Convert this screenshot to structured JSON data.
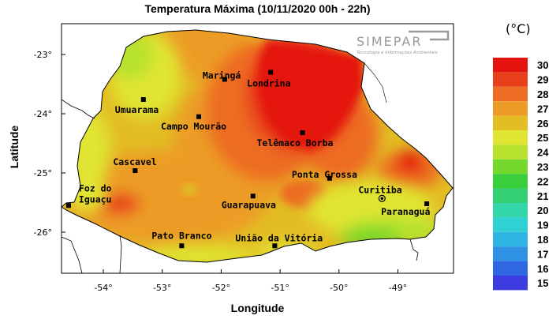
{
  "title": "Temperatura Máxima (10/11/2020 00h - 22h)",
  "unit_label": "(°C)",
  "axes": {
    "xlabel": "Longitude",
    "ylabel": "Latitude",
    "x_ticks": [
      {
        "value": -54,
        "label": "-54°"
      },
      {
        "value": -53,
        "label": "-53°"
      },
      {
        "value": -52,
        "label": "-52°"
      },
      {
        "value": -51,
        "label": "-51°"
      },
      {
        "value": -50,
        "label": "-50°"
      },
      {
        "value": -49,
        "label": "-49°"
      }
    ],
    "y_ticks": [
      {
        "value": -23,
        "label": "-23°"
      },
      {
        "value": -24,
        "label": "-24°"
      },
      {
        "value": -25,
        "label": "-25°"
      },
      {
        "value": -26,
        "label": "-26°"
      }
    ],
    "lon_range": [
      -54.7,
      -48.0
    ],
    "lat_range": [
      -22.5,
      -26.7
    ]
  },
  "logo": {
    "name": "SIMEPAR",
    "tagline": "Tecnologia e Informações Ambientais",
    "color": "#9a9a9a"
  },
  "legend": {
    "levels": [
      {
        "label": "30",
        "color": "#e4130f"
      },
      {
        "label": "29",
        "color": "#e8401c"
      },
      {
        "label": "28",
        "color": "#ed6d24"
      },
      {
        "label": "27",
        "color": "#ec9c26"
      },
      {
        "label": "26",
        "color": "#e2bd24"
      },
      {
        "label": "25",
        "color": "#e0e432"
      },
      {
        "label": "24",
        "color": "#b8e22d"
      },
      {
        "label": "23",
        "color": "#75d82c"
      },
      {
        "label": "22",
        "color": "#3acd3c"
      },
      {
        "label": "21",
        "color": "#33cf72"
      },
      {
        "label": "20",
        "color": "#33d6a8"
      },
      {
        "label": "19",
        "color": "#30d1d3"
      },
      {
        "label": "18",
        "color": "#2fb5e4"
      },
      {
        "label": "17",
        "color": "#2f91e3"
      },
      {
        "label": "16",
        "color": "#2f66e2"
      },
      {
        "label": "15",
        "color": "#3b3be0"
      }
    ]
  },
  "cities": [
    {
      "name": "Maringá",
      "lon": -51.94,
      "lat": -23.42
    },
    {
      "name": "Londrina",
      "lon": -51.16,
      "lat": -23.3
    },
    {
      "name": "Umuarama",
      "lon": -53.32,
      "lat": -23.76
    },
    {
      "name": "Campo Mourão",
      "lon": -52.38,
      "lat": -24.05
    },
    {
      "name": "Telêmaco Borba",
      "lon": -50.62,
      "lat": -24.32
    },
    {
      "name": "Cascavel",
      "lon": -53.46,
      "lat": -24.96
    },
    {
      "name": "Ponta Grossa",
      "lon": -50.16,
      "lat": -25.09
    },
    {
      "name": "Foz do Iguaçu",
      "lon": -54.59,
      "lat": -25.55
    },
    {
      "name": "Guarapuava",
      "lon": -51.46,
      "lat": -25.39
    },
    {
      "name": "Curitiba",
      "lon": -49.27,
      "lat": -25.43
    },
    {
      "name": "Paranaguá",
      "lon": -48.51,
      "lat": -25.52
    },
    {
      "name": "Pato Branco",
      "lon": -52.67,
      "lat": -26.23
    },
    {
      "name": "União da Vitória",
      "lon": -51.09,
      "lat": -26.23
    }
  ]
}
